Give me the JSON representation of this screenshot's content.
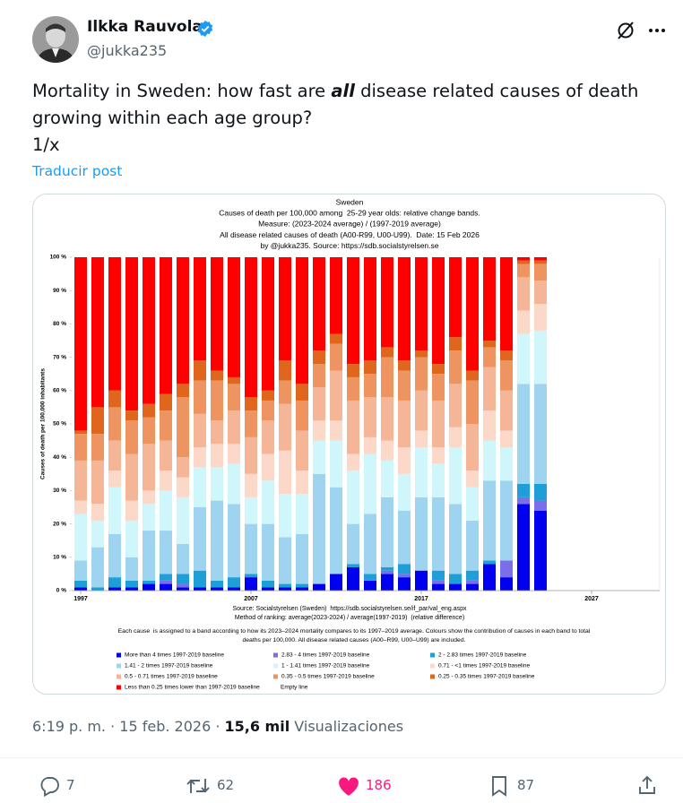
{
  "user": {
    "name": "Ilkka Rauvola",
    "handle": "@jukka235"
  },
  "post": {
    "text_before": "Mortality in Sweden: how fast are ",
    "text_bold": "all",
    "text_after": " disease related causes of death",
    "text_line2": "growing within each age group?",
    "text_line3": "1/x",
    "translate": "Traducir post"
  },
  "meta": {
    "time": "6:19 p. m. · 15 feb. 2026 · ",
    "views": "15,6 mil",
    "views_label": " Visualizaciones"
  },
  "actions": {
    "replies": 7,
    "reposts": 62,
    "likes": 186,
    "bookmarks": 87
  },
  "chart_data": {
    "type": "stacked_bar",
    "title": "Sweden",
    "subtitle": [
      "Causes of death per 100,000 among  25-29 year olds: relative change bands.",
      "Measure: (2023-2024 average) / (1997-2019 average)",
      "All disease related causes of death (A00-R99, U00-U99).  Date: 15 Feb 2026",
      "by @jukka235. Source: https://sdb.socialstyrelsen.se"
    ],
    "y_label": "Causes of death per 100,000 inhabitants",
    "source": [
      "Source: Socialstyrelsen (Sweden)  https://sdb.socialstyrelsen.se/if_par/val_eng.aspx",
      "Method of ranking: average(2023-2024) / average(1997-2019)  (relative difference)"
    ],
    "note": [
      "Each cause  is assigned to a band according to how its 2023–2024 mortality compares to its 1997–2019 average. Colours show the contribution of causes in each band to total",
      "deaths per 100,000. All disease related causes (A00–R99, U00–U99) are included."
    ],
    "legend_extra": "Empty line",
    "x": [
      1997,
      1998,
      1999,
      2000,
      2001,
      2002,
      2003,
      2004,
      2005,
      2006,
      2007,
      2008,
      2009,
      2010,
      2011,
      2012,
      2013,
      2014,
      2015,
      2016,
      2017,
      2018,
      2019,
      2020,
      2021,
      2022,
      2023,
      2024
    ],
    "xlim": [
      1996.5,
      2031
    ],
    "xticks": [
      1997,
      2007,
      2017,
      2027
    ],
    "ylim": [
      0,
      100
    ],
    "yticks": [
      {
        "value": 0,
        "label": "0 %"
      },
      {
        "value": 10,
        "label": "10 %"
      },
      {
        "value": 20,
        "label": "20 %"
      },
      {
        "value": 30,
        "label": "30 %"
      },
      {
        "value": 40,
        "label": "40 %"
      },
      {
        "value": 50,
        "label": "50 %"
      },
      {
        "value": 60,
        "label": "60 %"
      },
      {
        "value": 70,
        "label": "70 %"
      },
      {
        "value": 80,
        "label": "80 %"
      },
      {
        "value": 90,
        "label": "90 %"
      },
      {
        "value": 100,
        "label": "100 %"
      }
    ],
    "series": [
      {
        "name": "More than 4 times 1997-2019 baseline",
        "color": "#0000f0",
        "values": [
          1,
          0,
          1,
          1,
          2,
          2,
          1,
          1,
          1,
          1,
          4,
          1,
          1,
          1,
          2,
          5,
          7,
          3,
          5,
          4,
          6,
          2,
          2,
          2,
          8,
          4,
          26,
          24
        ]
      },
      {
        "name": "2.83 - 4 times 1997-2019 baseline",
        "color": "#7b6ee8",
        "values": [
          0,
          0,
          0,
          0,
          0,
          1,
          1,
          0,
          0,
          0,
          0,
          0,
          0,
          0,
          0,
          0,
          0,
          0,
          1,
          1,
          0,
          1,
          0,
          1,
          0,
          5,
          2,
          3
        ]
      },
      {
        "name": "2 - 2.83 times 1997-2019 baseline",
        "color": "#1e9fd8",
        "values": [
          2,
          1,
          3,
          2,
          1,
          2,
          3,
          5,
          2,
          3,
          1,
          2,
          1,
          1,
          0,
          0,
          1,
          2,
          1,
          3,
          0,
          3,
          3,
          3,
          1,
          0,
          4,
          5
        ]
      },
      {
        "name": "1.41 - 2 times 1997-2019 baseline",
        "color": "#9ed4ef",
        "values": [
          6,
          12,
          13,
          7,
          15,
          13,
          9,
          19,
          24,
          22,
          15,
          17,
          14,
          15,
          33,
          26,
          12,
          18,
          21,
          16,
          22,
          22,
          21,
          15,
          24,
          24,
          30,
          30
        ]
      },
      {
        "name": "1 - 1.41 times 1997-2019 baseline",
        "color": "#cff6fb",
        "values": [
          14,
          8,
          14,
          11,
          8,
          12,
          14,
          12,
          10,
          12,
          8,
          13,
          13,
          12,
          10,
          14,
          16,
          18,
          11,
          11,
          15,
          10,
          17,
          10,
          12,
          10,
          15,
          16
        ]
      },
      {
        "name": "0.71 - <1 times 1997-2019 baseline",
        "color": "#fbd8c8",
        "values": [
          4,
          5,
          5,
          6,
          4,
          6,
          6,
          6,
          7,
          6,
          7,
          8,
          13,
          7,
          6,
          6,
          5,
          5,
          6,
          8,
          5,
          5,
          6,
          5,
          9,
          5,
          7,
          8
        ]
      },
      {
        "name": "0.5 - 0.71 times 1997-2019 baseline",
        "color": "#f5b597",
        "values": [
          12,
          13,
          9,
          14,
          14,
          9,
          6,
          10,
          7,
          10,
          11,
          10,
          14,
          12,
          10,
          15,
          16,
          12,
          13,
          14,
          12,
          14,
          13,
          14,
          13,
          12,
          10,
          7
        ]
      },
      {
        "name": "0.35 - 0.5 times 1997-2019 baseline",
        "color": "#ee9460",
        "values": [
          8,
          8,
          10,
          10,
          8,
          9,
          18,
          10,
          12,
          8,
          8,
          6,
          7,
          9,
          7,
          8,
          7,
          7,
          12,
          9,
          10,
          8,
          10,
          13,
          6,
          9,
          4,
          5
        ]
      },
      {
        "name": "0.25 - 0.35 times 1997-2019 baseline",
        "color": "#e0661e",
        "values": [
          1,
          8,
          5,
          3,
          4,
          5,
          4,
          6,
          3,
          2,
          4,
          3,
          6,
          5,
          4,
          3,
          4,
          4,
          3,
          3,
          2,
          3,
          4,
          3,
          2,
          3,
          1,
          1
        ]
      },
      {
        "name": "Less than 0.25 times lower than 1997-2019 baseline",
        "color": "#ff0000",
        "values": [
          52,
          45,
          40,
          46,
          44,
          41,
          38,
          31,
          34,
          36,
          42,
          40,
          31,
          38,
          28,
          23,
          32,
          31,
          27,
          31,
          28,
          32,
          24,
          34,
          25,
          28,
          1,
          1
        ]
      }
    ]
  }
}
